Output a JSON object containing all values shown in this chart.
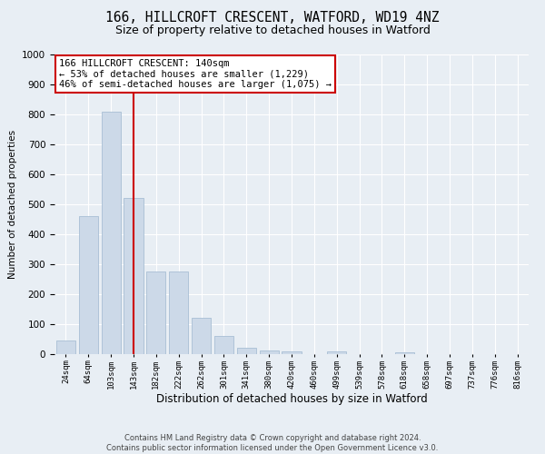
{
  "title": "166, HILLCROFT CRESCENT, WATFORD, WD19 4NZ",
  "subtitle": "Size of property relative to detached houses in Watford",
  "xlabel": "Distribution of detached houses by size in Watford",
  "ylabel": "Number of detached properties",
  "footer_line1": "Contains HM Land Registry data © Crown copyright and database right 2024.",
  "footer_line2": "Contains public sector information licensed under the Open Government Licence v3.0.",
  "categories": [
    "24sqm",
    "64sqm",
    "103sqm",
    "143sqm",
    "182sqm",
    "222sqm",
    "262sqm",
    "301sqm",
    "341sqm",
    "380sqm",
    "420sqm",
    "460sqm",
    "499sqm",
    "539sqm",
    "578sqm",
    "618sqm",
    "658sqm",
    "697sqm",
    "737sqm",
    "776sqm",
    "816sqm"
  ],
  "values": [
    45,
    460,
    810,
    520,
    275,
    275,
    120,
    60,
    22,
    12,
    10,
    0,
    8,
    0,
    0,
    5,
    0,
    0,
    0,
    0,
    0
  ],
  "bar_color": "#ccd9e8",
  "bar_edge_color": "#a8bfd4",
  "highlight_bar_index": 3,
  "annotation_line1": "166 HILLCROFT CRESCENT: 140sqm",
  "annotation_line2": "← 53% of detached houses are smaller (1,229)",
  "annotation_line3": "46% of semi-detached houses are larger (1,075) →",
  "annotation_box_facecolor": "#ffffff",
  "annotation_box_edgecolor": "#cc0000",
  "highlight_line_color": "#cc0000",
  "ylim_min": 0,
  "ylim_max": 1000,
  "yticks": [
    0,
    100,
    200,
    300,
    400,
    500,
    600,
    700,
    800,
    900,
    1000
  ],
  "bg_color": "#e8eef4",
  "grid_color": "#ffffff",
  "title_fontsize": 10.5,
  "subtitle_fontsize": 9,
  "xlabel_fontsize": 8.5,
  "ylabel_fontsize": 7.5,
  "ytick_fontsize": 7.5,
  "xtick_fontsize": 6.5,
  "annotation_fontsize": 7.5,
  "footer_fontsize": 6.0
}
